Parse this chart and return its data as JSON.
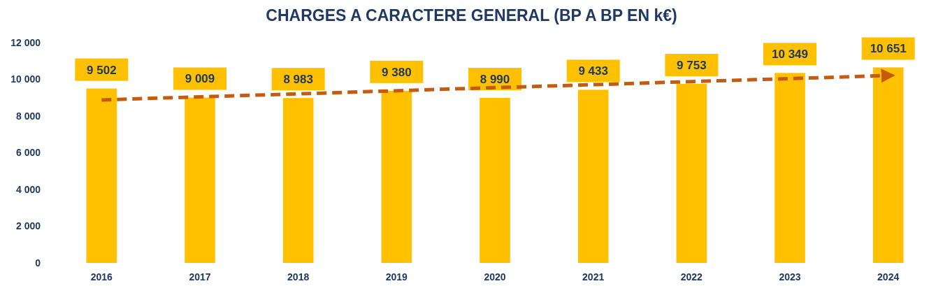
{
  "chart_data": {
    "type": "bar",
    "title": "CHARGES A CARACTERE GENERAL (BP A BP EN k€)",
    "categories": [
      "2016",
      "2017",
      "2018",
      "2019",
      "2020",
      "2021",
      "2022",
      "2023",
      "2024"
    ],
    "series": [
      {
        "color": "#ffc000",
        "values": [
          9502,
          9009,
          8983,
          9380,
          8990,
          9433,
          9753,
          10349,
          10651
        ],
        "value_labels": [
          "9 502",
          "9 009",
          "8 983",
          "9 380",
          "8 990",
          "9 433",
          "9 753",
          "10 349",
          "10 651"
        ]
      },
      {
        "type": "line",
        "color": "#c55a11",
        "line_style": "dashed",
        "values": [
          8880,
          9050,
          9210,
          9380,
          9550,
          9710,
          9880,
          10040,
          10210
        ]
      }
    ],
    "ylim": [
      0,
      12000
    ],
    "yticks": [
      {
        "value": 0,
        "label": "0"
      },
      {
        "value": 2000,
        "label": "2 000"
      },
      {
        "value": 4000,
        "label": "4 000"
      },
      {
        "value": 6000,
        "label": "6 000"
      },
      {
        "value": 8000,
        "label": "8 000"
      },
      {
        "value": 10000,
        "label": "10 000"
      },
      {
        "value": 12000,
        "label": "12 000"
      }
    ],
    "grid": false
  }
}
